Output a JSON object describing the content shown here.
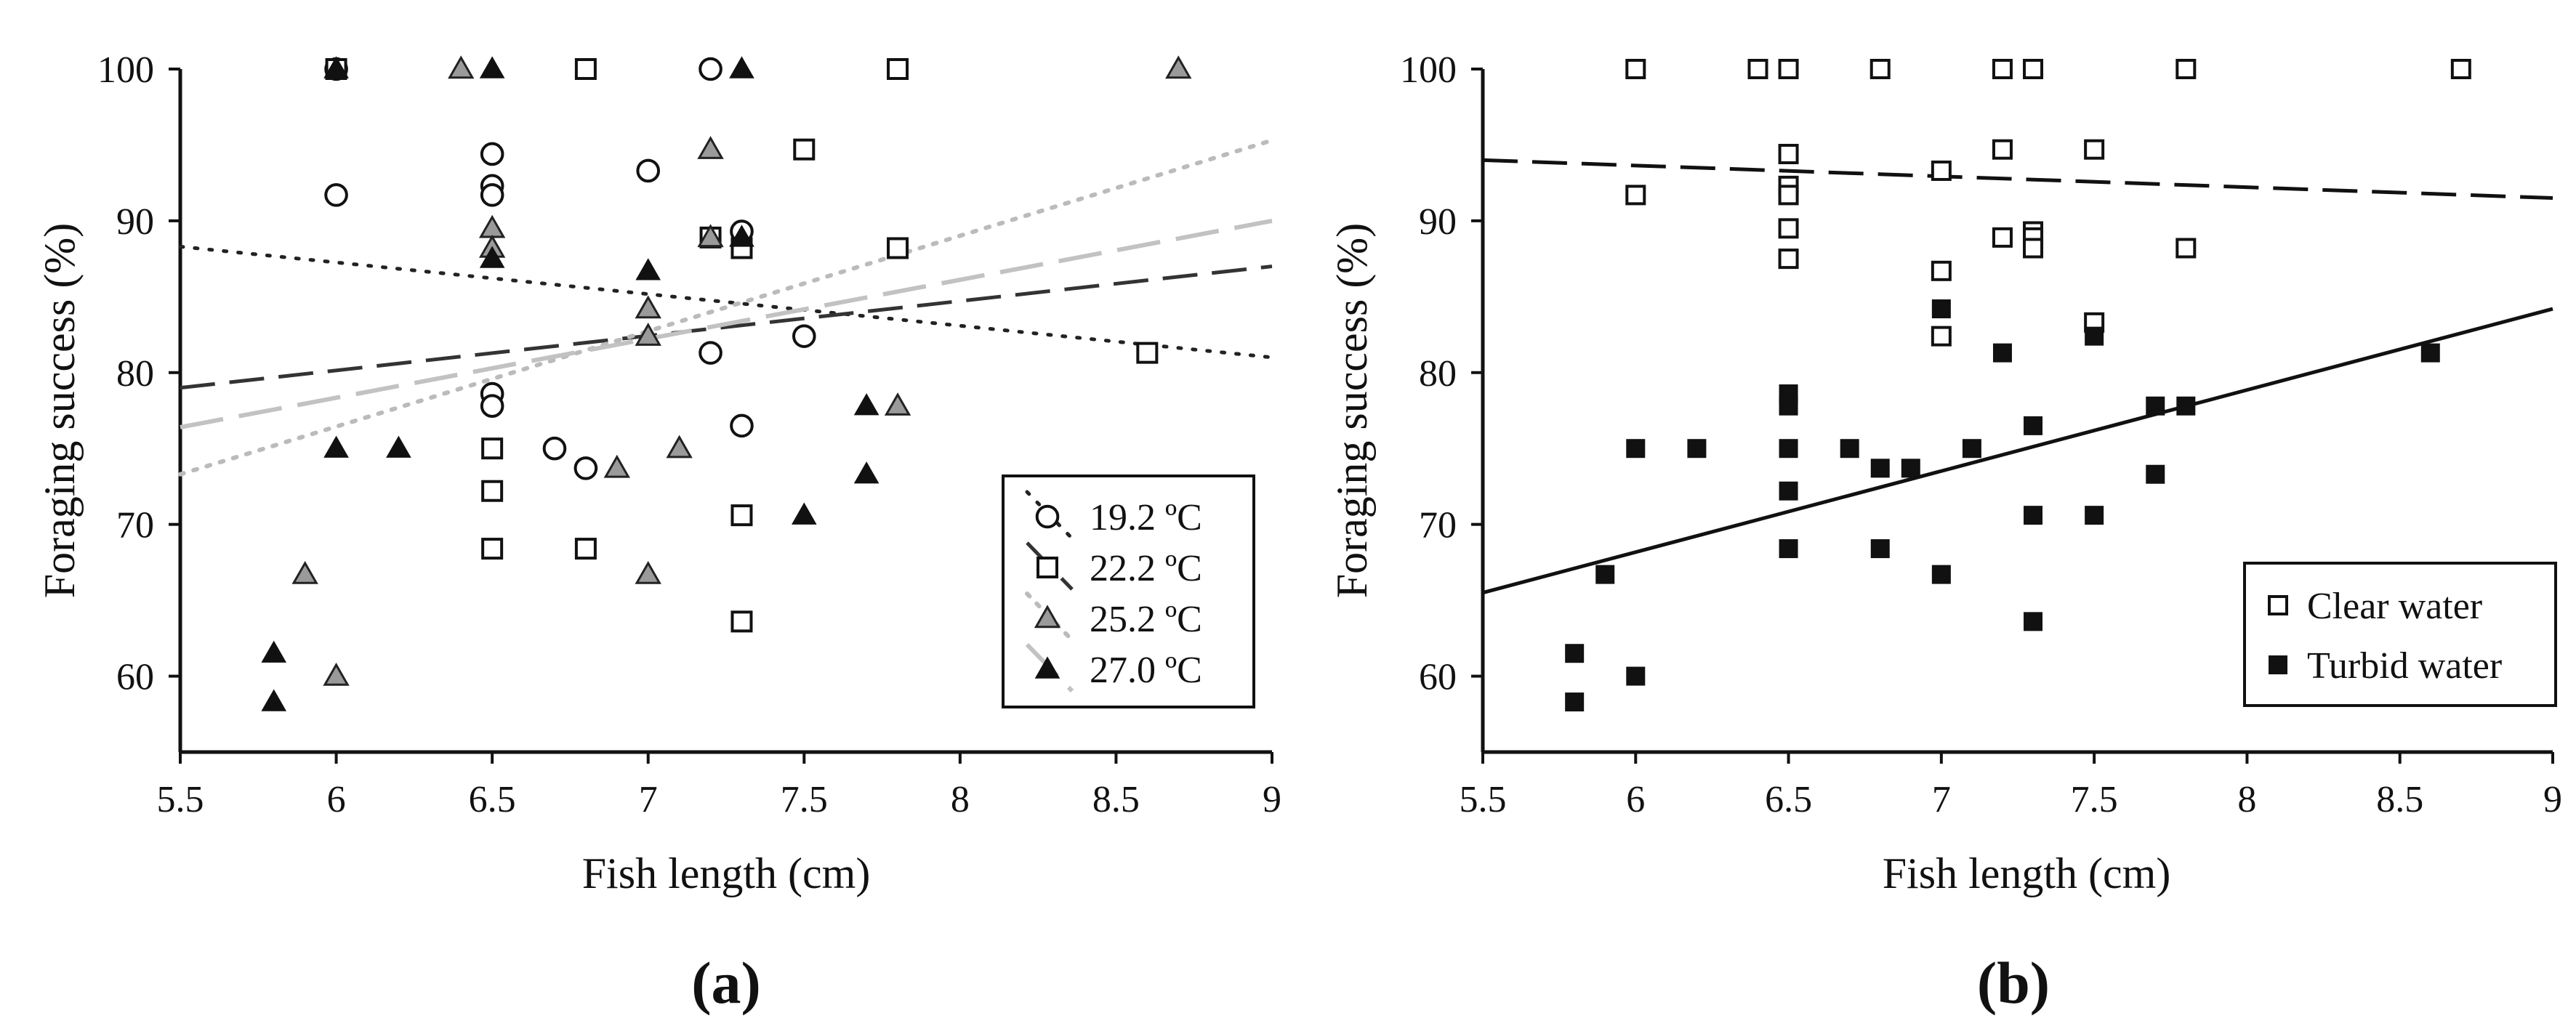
{
  "figure": {
    "panel_labels": [
      "(a)",
      "(b)"
    ]
  },
  "chart_data": [
    {
      "panel": "(a)",
      "type": "scatter",
      "title": "",
      "xlabel": "Fish length (cm)",
      "ylabel": "Foraging success (%)",
      "xlim": [
        5.5,
        9
      ],
      "ylim": [
        55,
        100
      ],
      "xticks": [
        5.5,
        6,
        6.5,
        7,
        7.5,
        8,
        8.5,
        9
      ],
      "xtick_labels": [
        "5.5",
        "6",
        "6.5",
        "7",
        "7.5",
        "8",
        "8.5",
        "9"
      ],
      "yticks": [
        60,
        70,
        80,
        90,
        100
      ],
      "ytick_labels": [
        "60",
        "70",
        "80",
        "90",
        "100"
      ],
      "grid": false,
      "legend_position": "bottom-right",
      "series": [
        {
          "name": "19.2 ºC",
          "marker": "circle-open",
          "line_style": "dotted",
          "color": "#222222",
          "points": [
            [
              6,
              100
            ],
            [
              6,
              91.7
            ],
            [
              6.5,
              94.4
            ],
            [
              6.5,
              92.3
            ],
            [
              6.5,
              91.7
            ],
            [
              6.5,
              78.6
            ],
            [
              6.5,
              77.8
            ],
            [
              6.7,
              75
            ],
            [
              6.8,
              73.7
            ],
            [
              7,
              93.3
            ],
            [
              7.2,
              100
            ],
            [
              7.2,
              81.3
            ],
            [
              7.3,
              89.3
            ],
            [
              7.3,
              76.5
            ],
            [
              7.5,
              82.4
            ]
          ],
          "trend": [
            [
              5.5,
              88.3
            ],
            [
              9,
              81
            ]
          ]
        },
        {
          "name": "22.2 ºC",
          "marker": "square-open",
          "line_style": "dashed",
          "color": "#333333",
          "points": [
            [
              6,
              100
            ],
            [
              6.5,
              75
            ],
            [
              6.5,
              72.2
            ],
            [
              6.5,
              68.4
            ],
            [
              6.8,
              100
            ],
            [
              6.8,
              68.4
            ],
            [
              7.2,
              88.9
            ],
            [
              7.3,
              88.2
            ],
            [
              7.3,
              70.6
            ],
            [
              7.3,
              63.6
            ],
            [
              7.5,
              94.7
            ],
            [
              7.8,
              100
            ],
            [
              7.8,
              88.2
            ],
            [
              8.6,
              81.3
            ]
          ],
          "trend": [
            [
              5.5,
              79
            ],
            [
              9,
              87
            ]
          ]
        },
        {
          "name": "25.2 ºC",
          "marker": "triangle-gray",
          "line_style": "dotted-light",
          "color": "#bbbbbb",
          "points": [
            [
              5.9,
              66.7
            ],
            [
              6,
              60
            ],
            [
              6.4,
              100
            ],
            [
              6.5,
              89.5
            ],
            [
              6.5,
              88.2
            ],
            [
              6.9,
              73.7
            ],
            [
              7,
              84.2
            ],
            [
              7,
              82.4
            ],
            [
              7,
              66.7
            ],
            [
              7.1,
              75
            ],
            [
              7.2,
              94.7
            ],
            [
              7.2,
              88.9
            ],
            [
              7.8,
              77.8
            ],
            [
              8.7,
              100
            ]
          ],
          "trend": [
            [
              5.5,
              73.3
            ],
            [
              9,
              95.3
            ]
          ]
        },
        {
          "name": "27.0 ºC",
          "marker": "triangle-filled",
          "line_style": "long-dash-light",
          "color": "#c2c2c2",
          "points": [
            [
              5.8,
              61.5
            ],
            [
              5.8,
              58.3
            ],
            [
              6,
              100
            ],
            [
              6,
              75
            ],
            [
              6.2,
              75
            ],
            [
              6.5,
              100
            ],
            [
              6.5,
              87.5
            ],
            [
              7,
              86.7
            ],
            [
              7.3,
              100
            ],
            [
              7.3,
              88.9
            ],
            [
              7.5,
              70.6
            ],
            [
              7.7,
              77.8
            ],
            [
              7.7,
              73.3
            ]
          ],
          "trend": [
            [
              5.5,
              76.4
            ],
            [
              9,
              90
            ]
          ]
        }
      ]
    },
    {
      "panel": "(b)",
      "type": "scatter",
      "title": "",
      "xlabel": "Fish length (cm)",
      "ylabel": "Foraging success (%)",
      "xlim": [
        5.5,
        9
      ],
      "ylim": [
        55,
        100
      ],
      "xticks": [
        5.5,
        6,
        6.5,
        7,
        7.5,
        8,
        8.5,
        9
      ],
      "xtick_labels": [
        "5.5",
        "6",
        "6.5",
        "7",
        "7.5",
        "8",
        "8.5",
        "9"
      ],
      "yticks": [
        60,
        70,
        80,
        90,
        100
      ],
      "ytick_labels": [
        "60",
        "70",
        "80",
        "90",
        "100"
      ],
      "grid": false,
      "legend_position": "bottom-right",
      "series": [
        {
          "name": "Clear water",
          "marker": "square-open",
          "line_style": "dashed",
          "color": "#111111",
          "points": [
            [
              6,
              100
            ],
            [
              6,
              91.7
            ],
            [
              6.4,
              100
            ],
            [
              6.5,
              100
            ],
            [
              6.5,
              94.4
            ],
            [
              6.5,
              92.3
            ],
            [
              6.5,
              91.7
            ],
            [
              6.5,
              89.5
            ],
            [
              6.5,
              87.5
            ],
            [
              6.8,
              100
            ],
            [
              7,
              93.3
            ],
            [
              7,
              86.7
            ],
            [
              7,
              82.4
            ],
            [
              7.2,
              100
            ],
            [
              7.2,
              94.7
            ],
            [
              7.2,
              88.9
            ],
            [
              7.3,
              100
            ],
            [
              7.3,
              89.3
            ],
            [
              7.3,
              88.9
            ],
            [
              7.3,
              88.2
            ],
            [
              7.5,
              94.7
            ],
            [
              7.5,
              83.3
            ],
            [
              7.8,
              100
            ],
            [
              7.8,
              88.2
            ],
            [
              8.7,
              100
            ]
          ],
          "trend": [
            [
              5.5,
              94
            ],
            [
              9,
              91.5
            ]
          ]
        },
        {
          "name": "Turbid water",
          "marker": "square-filled",
          "line_style": "solid",
          "color": "#111111",
          "points": [
            [
              5.8,
              61.5
            ],
            [
              5.8,
              58.3
            ],
            [
              5.9,
              66.7
            ],
            [
              6,
              75
            ],
            [
              6,
              60
            ],
            [
              6.2,
              75
            ],
            [
              6.5,
              78.6
            ],
            [
              6.5,
              77.8
            ],
            [
              6.5,
              75
            ],
            [
              6.5,
              72.2
            ],
            [
              6.5,
              68.4
            ],
            [
              6.7,
              75
            ],
            [
              6.8,
              73.7
            ],
            [
              6.8,
              68.4
            ],
            [
              6.9,
              73.7
            ],
            [
              7,
              84.2
            ],
            [
              7,
              66.7
            ],
            [
              7.1,
              75
            ],
            [
              7.2,
              81.3
            ],
            [
              7.3,
              76.5
            ],
            [
              7.3,
              70.6
            ],
            [
              7.3,
              63.6
            ],
            [
              7.5,
              82.4
            ],
            [
              7.5,
              70.6
            ],
            [
              7.7,
              77.8
            ],
            [
              7.7,
              73.3
            ],
            [
              7.8,
              77.8
            ],
            [
              8.6,
              81.3
            ]
          ],
          "trend": [
            [
              5.5,
              65.5
            ],
            [
              9,
              84.2
            ]
          ]
        }
      ]
    }
  ]
}
